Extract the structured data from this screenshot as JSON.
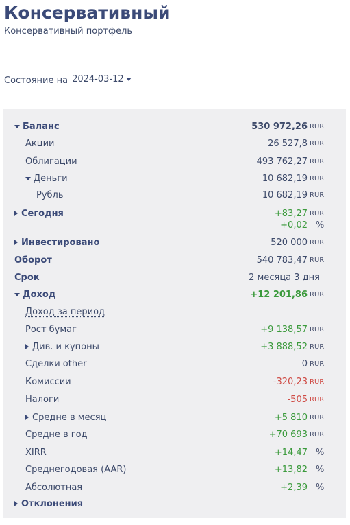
{
  "header": {
    "title": "Консервативный",
    "subtitle": "Консервативный портфель"
  },
  "state": {
    "label": "Состояние на",
    "date": "2024-03-12"
  },
  "rows": {
    "balance": {
      "label": "Баланс",
      "value": "530 972,26",
      "unit": "RUR"
    },
    "stocks": {
      "label": "Акции",
      "value": "26 527,8",
      "unit": "RUR"
    },
    "bonds": {
      "label": "Облигации",
      "value": "493 762,27",
      "unit": "RUR"
    },
    "money": {
      "label": "Деньги",
      "value": "10 682,19",
      "unit": "RUR"
    },
    "ruble": {
      "label": "Рубль",
      "value": "10 682,19",
      "unit": "RUR"
    },
    "today": {
      "label": "Сегодня",
      "value": "+83,27",
      "unit": "RUR",
      "value2": "+0,02",
      "unit2": "%"
    },
    "invested": {
      "label": "Инвестировано",
      "value": "520 000",
      "unit": "RUR"
    },
    "turnover": {
      "label": "Оборот",
      "value": "540 783,47",
      "unit": "RUR"
    },
    "term": {
      "label": "Срок",
      "value": "2 месяца 3 дня"
    },
    "income": {
      "label": "Доход",
      "value": "+12 201,86",
      "unit": "RUR"
    },
    "period_income": {
      "label": "Доход за период"
    },
    "growth": {
      "label": "Рост бумаг",
      "value": "+9 138,57",
      "unit": "RUR"
    },
    "dividends": {
      "label": "Див. и купоны",
      "value": "+3 888,52",
      "unit": "RUR"
    },
    "deals_other": {
      "label": "Сделки other",
      "value": "0",
      "unit": "RUR"
    },
    "commissions": {
      "label": "Комиссии",
      "value": "-320,23",
      "unit": "RUR"
    },
    "taxes": {
      "label": "Налоги",
      "value": "-505",
      "unit": "RUR"
    },
    "avg_month": {
      "label": "Средне в месяц",
      "value": "+5 810",
      "unit": "RUR"
    },
    "avg_year": {
      "label": "Средне в год",
      "value": "+70 693",
      "unit": "RUR"
    },
    "xirr": {
      "label": "XIRR",
      "value": "+14,47",
      "unit": "%"
    },
    "aar": {
      "label": "Среднегодовая (AAR)",
      "value": "+13,82",
      "unit": "%"
    },
    "absolute": {
      "label": "Абсолютная",
      "value": "+2,39",
      "unit": "%"
    },
    "deviations": {
      "label": "Отклонения"
    }
  },
  "colors": {
    "accent": "#3b4a78",
    "positive": "#3b9a3c",
    "negative": "#cf4b45",
    "panel": "#efeff1"
  }
}
